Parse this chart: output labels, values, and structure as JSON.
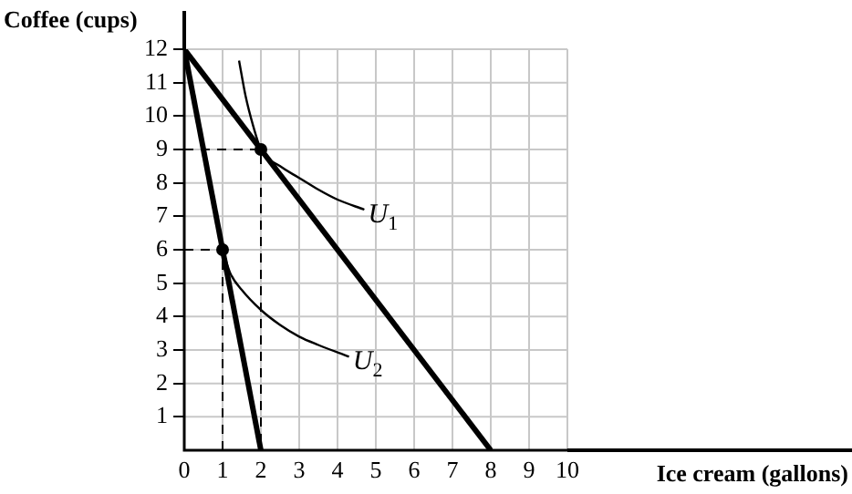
{
  "chart_data": {
    "type": "line",
    "xlabel": "Ice cream (gallons)",
    "ylabel": "Coffee (cups)",
    "xlim": [
      0,
      10
    ],
    "ylim": [
      0,
      12
    ],
    "xticks": [
      {
        "value": 0,
        "label": "0"
      },
      1,
      2,
      3,
      4,
      5,
      6,
      7,
      8,
      9,
      10
    ],
    "yticks": [
      1,
      2,
      3,
      4,
      5,
      6,
      7,
      8,
      9,
      10,
      11,
      12
    ],
    "grid": true,
    "legend": false,
    "marker": "none",
    "series": [
      {
        "type": "line",
        "color": "#000000",
        "x": [
          0,
          8
        ],
        "values": [
          12,
          0
        ]
      },
      {
        "type": "line",
        "color": "#000000",
        "x": [
          0,
          2
        ],
        "values": [
          12,
          0
        ]
      },
      {
        "type": "line",
        "color": "#000000",
        "x": [
          1.43,
          1.6,
          1.8,
          2,
          2.5,
          3,
          3.5,
          4,
          4.7
        ],
        "values": [
          11.66,
          10.6,
          9.7,
          9,
          8.5,
          8.15,
          7.8,
          7.5,
          7.2
        ]
      },
      {
        "type": "line",
        "color": "#000000",
        "x": [
          1,
          1.2,
          1.5,
          2,
          2.5,
          3,
          3.5,
          4.3
        ],
        "values": [
          6,
          5.3,
          4.8,
          4.2,
          3.75,
          3.4,
          3.15,
          2.8
        ]
      },
      {
        "type": "line",
        "color": "#000000",
        "line_style": "dashed",
        "x": [
          0,
          2,
          2
        ],
        "values": [
          9,
          9,
          0
        ]
      },
      {
        "type": "line",
        "color": "#000000",
        "line_style": "dashed",
        "x": [
          0,
          1,
          1
        ],
        "values": [
          6,
          6,
          0
        ]
      },
      {
        "type": "scatter",
        "color": "#000000",
        "marker": "circle",
        "x": [
          2,
          1
        ],
        "values": [
          9,
          6
        ]
      }
    ],
    "annotations": [
      {
        "text": "U$_{1}$",
        "x": 4.8,
        "y": 7.1
      },
      {
        "text": "U$_{2}$",
        "x": 4.4,
        "y": 2.7
      }
    ]
  }
}
